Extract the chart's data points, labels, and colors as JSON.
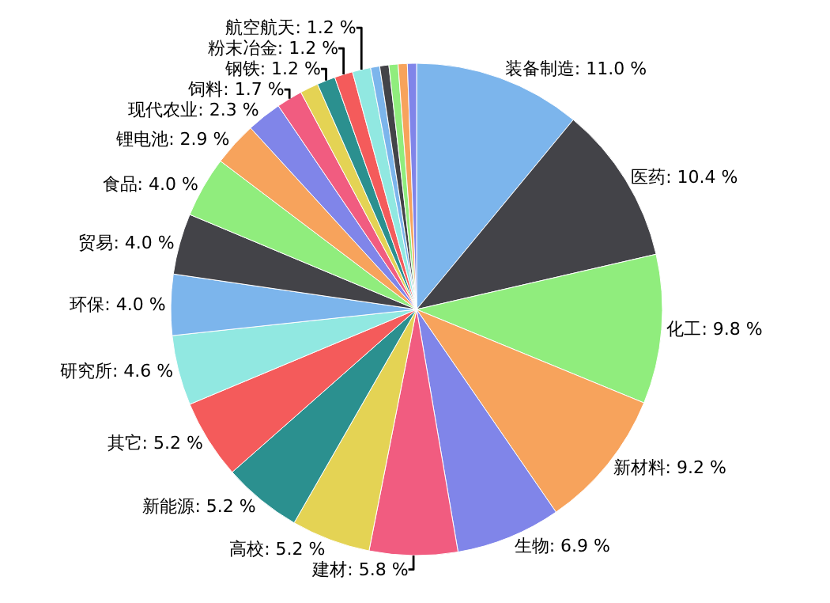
{
  "chart_data": {
    "type": "pie",
    "categories": [
      "装备制造",
      "医药",
      "化工",
      "新材料",
      "生物",
      "建材",
      "高校",
      "新能源",
      "其它",
      "研究所",
      "环保",
      "贸易",
      "食品",
      "锂电池",
      "现代农业",
      "饲料",
      null,
      "钢铁",
      "粉末冶金",
      "航空航天",
      null,
      null,
      null,
      null,
      null
    ],
    "values": [
      11.0,
      10.4,
      9.8,
      9.2,
      6.9,
      5.8,
      5.2,
      5.2,
      5.2,
      4.6,
      4.0,
      4.0,
      4.0,
      2.9,
      2.3,
      1.7,
      1.2,
      1.2,
      1.2,
      1.2,
      0.6,
      0.6,
      0.6,
      0.6,
      0.6
    ],
    "value_labels": [
      "11.0 %",
      "10.4 %",
      "9.8 %",
      "9.2 %",
      "6.9 %",
      "5.8 %",
      "5.2 %",
      "5.2 %",
      "5.2 %",
      "4.6 %",
      "4.0 %",
      "4.0 %",
      "4.0 %",
      "2.9 %",
      "2.3 %",
      "1.7 %",
      null,
      "1.2 %",
      "1.2 %",
      "1.2 %",
      null,
      null,
      null,
      null,
      null
    ],
    "colors": [
      "#7cb5ec",
      "#434348",
      "#90ed7d",
      "#f7a35c",
      "#8085e9",
      "#f15c80",
      "#e4d354",
      "#2b908f",
      "#f45b5b",
      "#91e8e1",
      "#7cb5ec",
      "#434348",
      "#90ed7d",
      "#f7a35c",
      "#8085e9",
      "#f15c80",
      "#e4d354",
      "#2b908f",
      "#f45b5b",
      "#91e8e1",
      "#7cb5ec",
      "#434348",
      "#90ed7d",
      "#f7a35c",
      "#8085e9"
    ],
    "legend": false
  }
}
